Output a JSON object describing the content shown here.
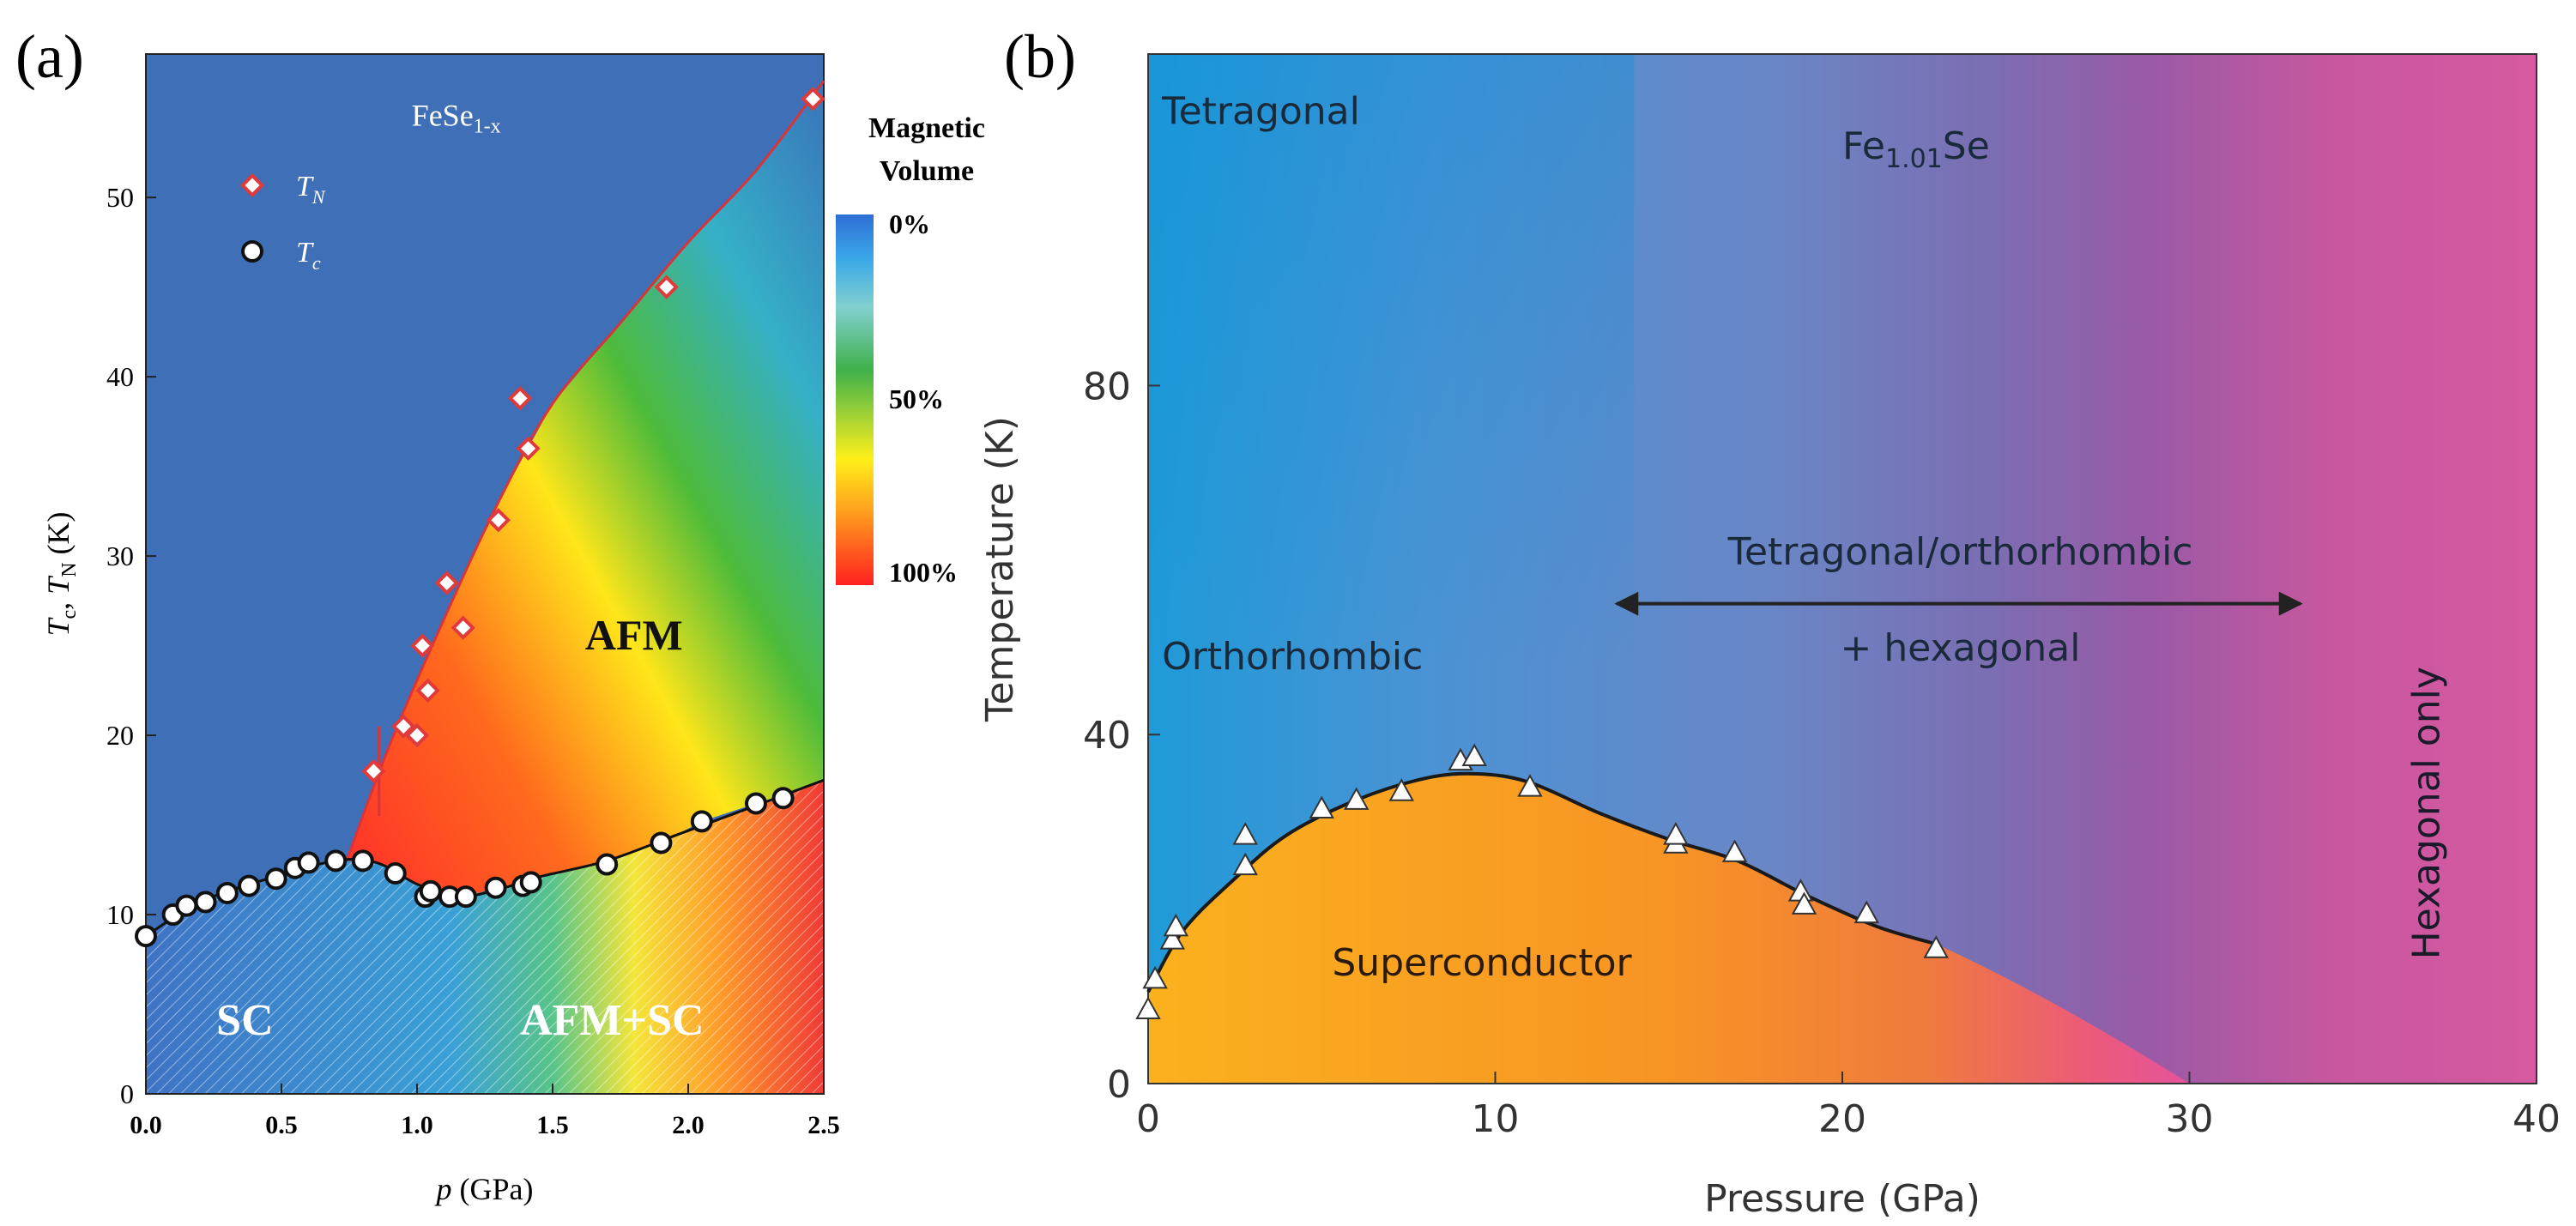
{
  "panels": {
    "a": {
      "label": "(a)"
    },
    "b": {
      "label": "(b)"
    }
  },
  "chart_data": [
    {
      "id": "a",
      "type": "scatter",
      "title": "",
      "xlabel": "p (GPa)",
      "ylabel": "Tc, TN (K)",
      "xlim": [
        0,
        2.5
      ],
      "ylim": [
        0,
        58
      ],
      "xticks": [
        "0.0",
        "0.5",
        "1.0",
        "1.5",
        "2.0",
        "2.5"
      ],
      "yticks": [
        "0",
        "10",
        "20",
        "30",
        "40",
        "50"
      ],
      "annotations": {
        "compound": "FeSe",
        "compound_sub": "1-x",
        "afm": "AFM",
        "sc": "SC",
        "afm_sc": "AFM+SC"
      },
      "colorbar": {
        "title_line1": "Magnetic",
        "title_line2": "Volume",
        "ticks": [
          "0%",
          "50%",
          "100%"
        ]
      },
      "legend": {
        "position": "top-left",
        "entries": [
          {
            "name": "T",
            "sub": "N",
            "marker": "diamond",
            "color": "#e03a3a"
          },
          {
            "name": "T",
            "sub": "c",
            "marker": "circle",
            "color": "#111111"
          }
        ]
      },
      "series": [
        {
          "name": "TN",
          "marker": "diamond",
          "points": [
            [
              0.84,
              18.0
            ],
            [
              0.95,
              20.5
            ],
            [
              1.0,
              20.0
            ],
            [
              1.02,
              25.0
            ],
            [
              1.04,
              22.5
            ],
            [
              1.11,
              28.5
            ],
            [
              1.17,
              26.0
            ],
            [
              1.3,
              32.0
            ],
            [
              1.38,
              38.8
            ],
            [
              1.41,
              36.0
            ],
            [
              1.92,
              45.0
            ],
            [
              2.46,
              55.5
            ]
          ]
        },
        {
          "name": "Tc",
          "marker": "circle",
          "points": [
            [
              0.0,
              8.8
            ],
            [
              0.1,
              10.0
            ],
            [
              0.15,
              10.5
            ],
            [
              0.22,
              10.7
            ],
            [
              0.3,
              11.2
            ],
            [
              0.38,
              11.6
            ],
            [
              0.48,
              12.0
            ],
            [
              0.55,
              12.6
            ],
            [
              0.6,
              12.9
            ],
            [
              0.7,
              13.0
            ],
            [
              0.8,
              13.0
            ],
            [
              0.92,
              12.3
            ],
            [
              1.03,
              11.0
            ],
            [
              1.05,
              11.3
            ],
            [
              1.12,
              11.0
            ],
            [
              1.18,
              11.0
            ],
            [
              1.29,
              11.5
            ],
            [
              1.39,
              11.6
            ],
            [
              1.42,
              11.8
            ],
            [
              1.7,
              12.8
            ],
            [
              1.9,
              14.0
            ],
            [
              2.05,
              15.2
            ],
            [
              2.25,
              16.2
            ],
            [
              2.35,
              16.5
            ]
          ]
        }
      ]
    },
    {
      "id": "b",
      "type": "scatter",
      "title": "",
      "xlabel": "Pressure (GPa)",
      "ylabel": "Temperature (K)",
      "xlim": [
        0,
        40
      ],
      "ylim": [
        0,
        118
      ],
      "xticks": [
        "0",
        "10",
        "20",
        "30",
        "40"
      ],
      "yticks": [
        "0",
        "40",
        "80"
      ],
      "annotations": {
        "tetragonal": "Tetragonal",
        "compound_pre": "Fe",
        "compound_sub": "1.01",
        "compound_post": "Se",
        "mixed_line1": "Tetragonal/orthorhombic",
        "mixed_line2": "+ hexagonal",
        "orthorhombic": "Orthorhombic",
        "superconductor": "Superconductor",
        "hexagonal": "Hexagonal only"
      },
      "arrow_range": [
        13.5,
        33.2
      ],
      "series": [
        {
          "name": "Tc",
          "marker": "triangle",
          "points": [
            [
              0.0,
              8.5
            ],
            [
              0.2,
              12.0
            ],
            [
              0.7,
              16.5
            ],
            [
              0.8,
              18.0
            ],
            [
              2.8,
              25.0
            ],
            [
              2.8,
              28.5
            ],
            [
              5.0,
              31.5
            ],
            [
              6.0,
              32.5
            ],
            [
              7.3,
              33.5
            ],
            [
              9.0,
              37.0
            ],
            [
              9.4,
              37.5
            ],
            [
              11.0,
              34.0
            ],
            [
              15.2,
              27.5
            ],
            [
              15.2,
              28.5
            ],
            [
              16.9,
              26.5
            ],
            [
              18.8,
              22.0
            ],
            [
              18.9,
              20.5
            ],
            [
              20.7,
              19.5
            ],
            [
              22.7,
              15.5
            ]
          ]
        }
      ]
    }
  ]
}
